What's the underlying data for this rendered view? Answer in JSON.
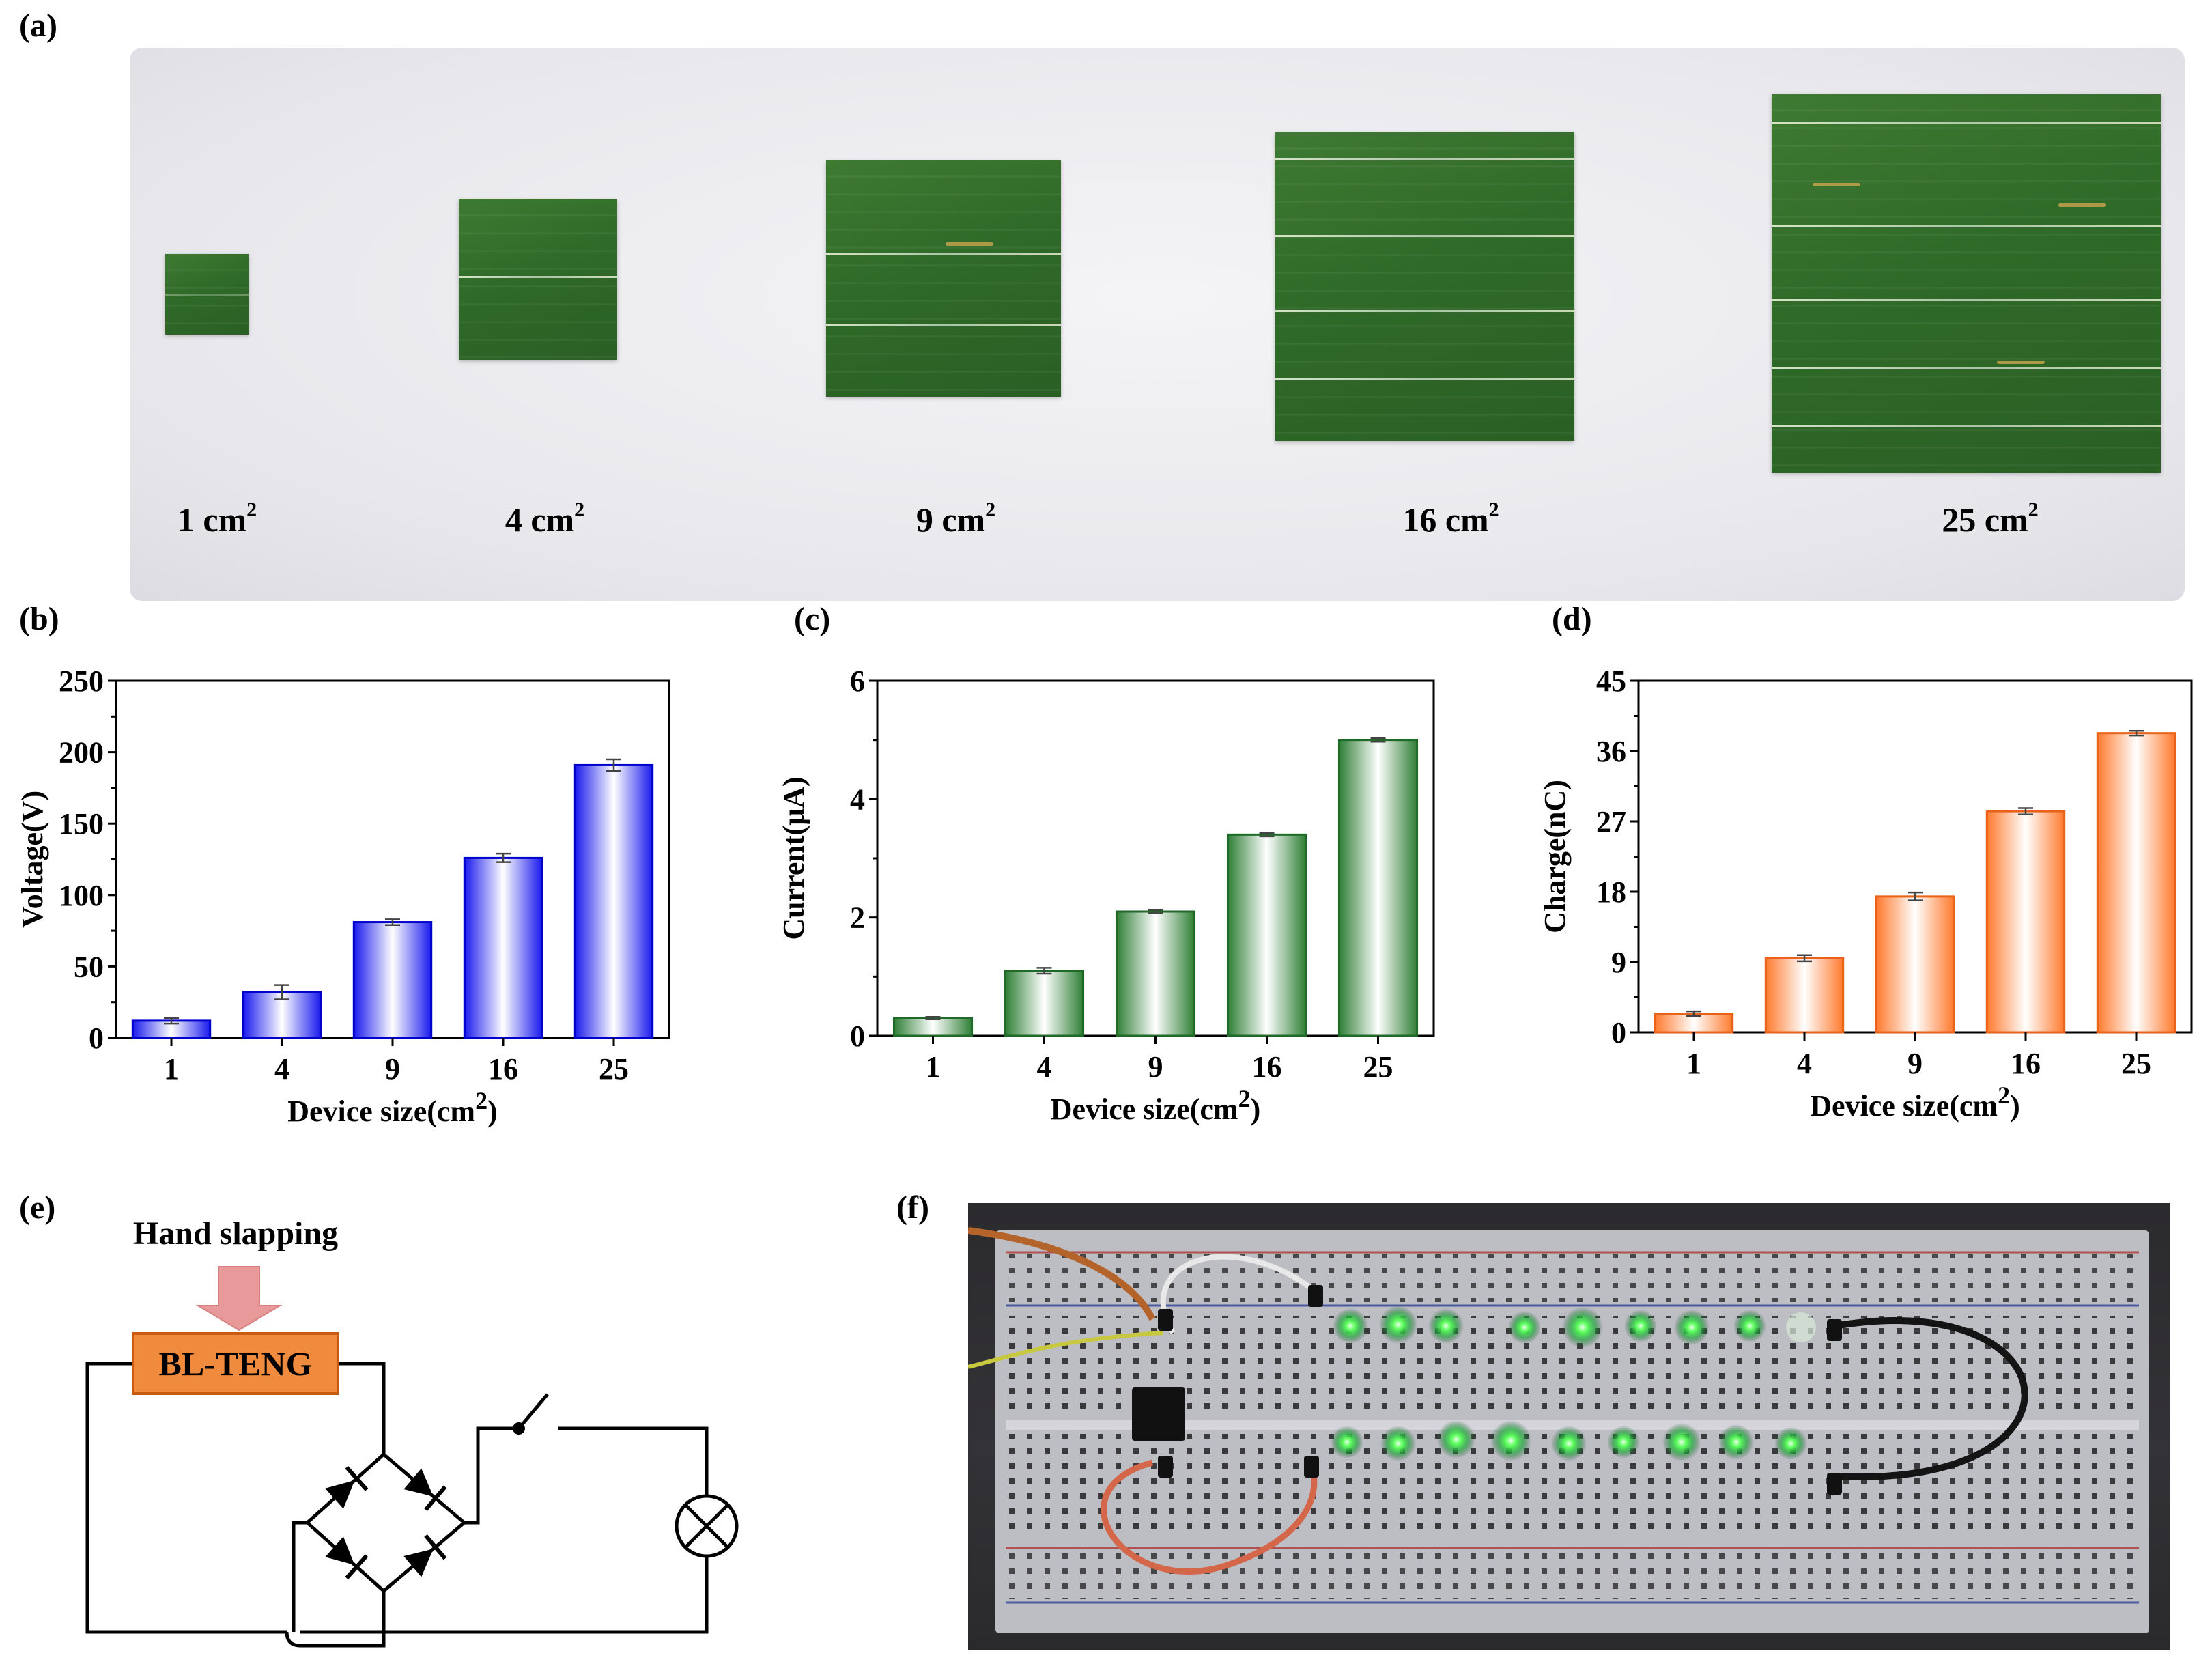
{
  "panels": {
    "a": "(a)",
    "b": "(b)",
    "c": "(c)",
    "d": "(d)",
    "e": "(e)",
    "f": "(f)"
  },
  "photo_a": {
    "sizes": [
      {
        "num": "1",
        "unit": "cm",
        "exp": "2"
      },
      {
        "num": "4",
        "unit": "cm",
        "exp": "2"
      },
      {
        "num": "9",
        "unit": "cm",
        "exp": "2"
      },
      {
        "num": "16",
        "unit": "cm",
        "exp": "2"
      },
      {
        "num": "25",
        "unit": "cm",
        "exp": "2"
      }
    ]
  },
  "chart_data": [
    {
      "type": "bar",
      "categories": [
        "1",
        "4",
        "9",
        "16",
        "25"
      ],
      "values": [
        12,
        32,
        81,
        126,
        191
      ],
      "errors": [
        2,
        5,
        2,
        3,
        4
      ],
      "xlabel_text": "Device size(cm",
      "xlabel_exp": "2",
      "xlabel_close": ")",
      "ylabel": "Voltage(V)",
      "ylim": [
        0,
        250
      ],
      "yticks": [
        "0",
        "50",
        "100",
        "150",
        "200",
        "250"
      ],
      "colors": {
        "edge": "#1a1aee",
        "fill": "#ffffff",
        "stroke": "#0000cc"
      }
    },
    {
      "type": "bar",
      "categories": [
        "1",
        "4",
        "9",
        "16",
        "25"
      ],
      "values": [
        0.3,
        1.1,
        2.1,
        3.4,
        5.0
      ],
      "errors": [
        0.02,
        0.05,
        0.03,
        0.03,
        0.03
      ],
      "xlabel_text": "Device size(cm",
      "xlabel_exp": "2",
      "xlabel_close": ")",
      "ylabel": "Current(μA)",
      "ylim": [
        0,
        6
      ],
      "yticks": [
        "0",
        "2",
        "4",
        "6"
      ],
      "colors": {
        "edge": "#2f7f36",
        "fill": "#ffffff",
        "stroke": "#1f6a28"
      }
    },
    {
      "type": "bar",
      "categories": [
        "1",
        "4",
        "9",
        "16",
        "25"
      ],
      "values": [
        2.4,
        9.5,
        17.4,
        28.3,
        38.3
      ],
      "errors": [
        0.3,
        0.4,
        0.5,
        0.4,
        0.3
      ],
      "xlabel_text": "Device size(cm",
      "xlabel_exp": "2",
      "xlabel_close": ")",
      "ylabel": "Charge(nC)",
      "ylim": [
        0,
        45
      ],
      "yticks": [
        "0",
        "9",
        "18",
        "27",
        "36",
        "45"
      ],
      "colors": {
        "edge": "#ff7a2e",
        "fill": "#ffffff",
        "stroke": "#e8621a"
      }
    }
  ],
  "circuit": {
    "input_label": "Hand slapping",
    "device_label": "BL-TENG",
    "colors": {
      "device": "#f08a3c",
      "device_border": "#c85a12",
      "arrow": "#e89a9a"
    }
  }
}
